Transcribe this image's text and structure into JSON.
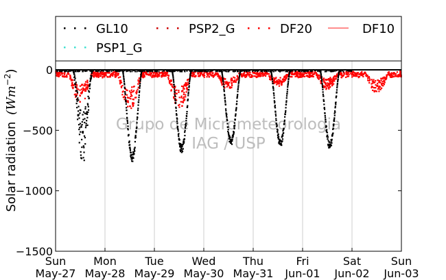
{
  "chart_data": {
    "type": "scatter",
    "ylabel": "Solar radiation",
    "ylabel_unit": "(Wm",
    "ylabel_exp": "−2",
    "ylabel_close": ")",
    "ylim": [
      -1500,
      80
    ],
    "yticks": [
      0,
      -500,
      -1000,
      -1500
    ],
    "ytick_labels": [
      "0",
      "−500",
      "−1000",
      "−1500"
    ],
    "xlim": [
      0,
      7
    ],
    "xticks": [
      0,
      1,
      2,
      3,
      4,
      5,
      6,
      7
    ],
    "xtick_labels": [
      {
        "day": "Sun",
        "date": "May-27"
      },
      {
        "day": "Mon",
        "date": "May-28"
      },
      {
        "day": "Tue",
        "date": "May-29"
      },
      {
        "day": "Wed",
        "date": "May-30"
      },
      {
        "day": "Thu",
        "date": "May-31"
      },
      {
        "day": "Fri",
        "date": "Jun-01"
      },
      {
        "day": "Sat",
        "date": "Jun-02"
      },
      {
        "day": "Sun",
        "date": "Jun-03"
      }
    ],
    "grid": "x",
    "legend_position": "top",
    "legend": [
      {
        "name": "GL10",
        "color": "#000000",
        "style": "dots"
      },
      {
        "name": "PSP2_G",
        "color": "#cc0000",
        "style": "dots"
      },
      {
        "name": "DF20",
        "color": "#ff0000",
        "style": "dots"
      },
      {
        "name": "DF10",
        "color": "#ff6666",
        "style": "line"
      },
      {
        "name": "PSP1_G",
        "color": "#40e0d0",
        "style": "dots"
      }
    ],
    "watermark": [
      "Grupo de Micrometeorologia",
      "IAG / USP"
    ],
    "series": [
      {
        "name": "GL10",
        "color": "#000000",
        "peaks": [
          -780,
          -760,
          -690,
          -625,
          -640,
          -660
        ]
      },
      {
        "name": "DF20",
        "color": "#ff0000",
        "peaks": [
          -260,
          -320,
          -300,
          -150,
          -120,
          -140,
          -170
        ]
      }
    ]
  }
}
